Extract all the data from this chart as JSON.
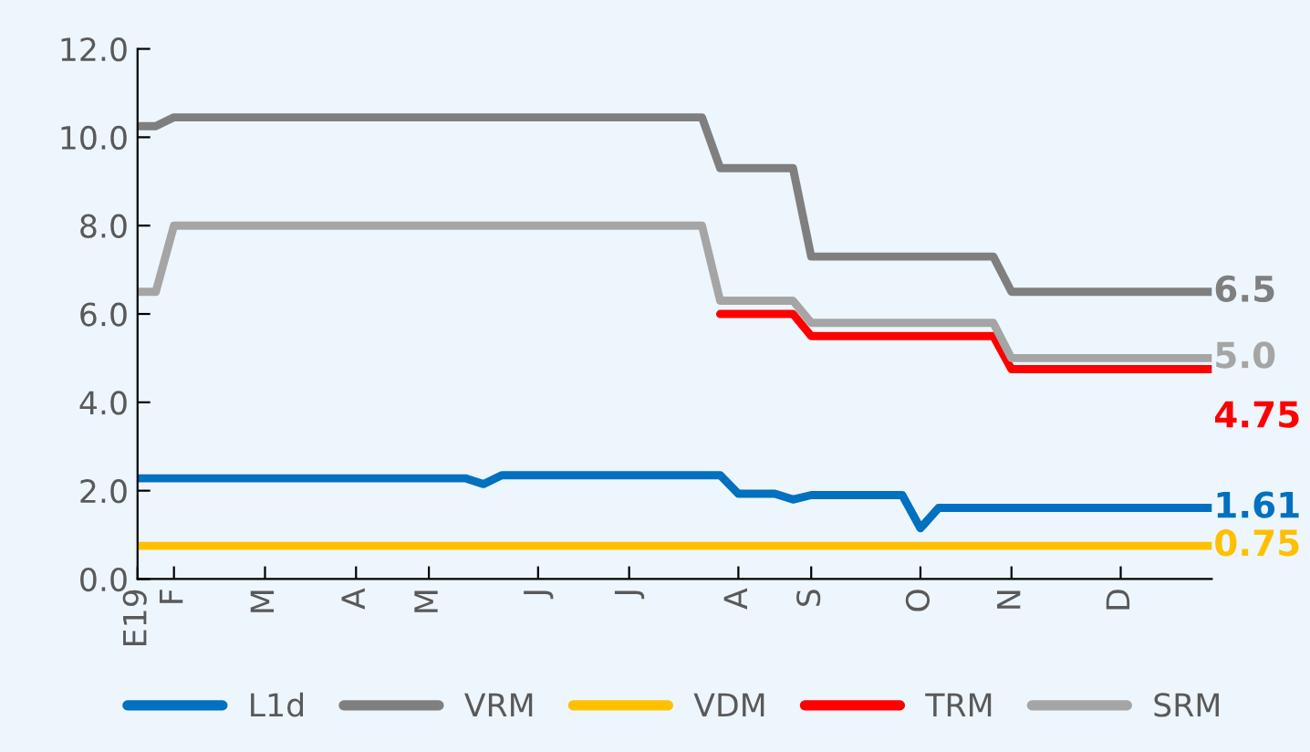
{
  "chart_data": {
    "type": "line",
    "ylim": [
      0,
      12
    ],
    "yticks": [
      {
        "value": 0,
        "label": "0.0"
      },
      {
        "value": 2,
        "label": "2.0"
      },
      {
        "value": 4,
        "label": "4.0"
      },
      {
        "value": 6,
        "label": "6.0"
      },
      {
        "value": 8,
        "label": "8.0"
      },
      {
        "value": 10,
        "label": "10.0"
      },
      {
        "value": 12,
        "label": "12.0"
      }
    ],
    "categories": [
      "E19",
      null,
      "F",
      null,
      null,
      null,
      null,
      "M",
      null,
      null,
      null,
      null,
      "A",
      null,
      null,
      null,
      "M",
      null,
      null,
      null,
      null,
      null,
      "J",
      null,
      null,
      null,
      null,
      "J",
      null,
      null,
      null,
      null,
      null,
      "A",
      null,
      null,
      null,
      "S",
      null,
      null,
      null,
      null,
      null,
      "O",
      null,
      null,
      null,
      null,
      "N",
      null,
      null,
      null,
      null,
      null,
      "D",
      null,
      null,
      null,
      null,
      null
    ],
    "grid": false,
    "legend": "bottom",
    "marker": "none",
    "line_style": "solid",
    "series": [
      {
        "name": "L1d",
        "color": "#0070c0",
        "values": [
          2.28,
          2.28,
          2.28,
          2.28,
          2.28,
          2.28,
          2.28,
          2.28,
          2.28,
          2.28,
          2.28,
          2.28,
          2.28,
          2.28,
          2.28,
          2.28,
          2.28,
          2.28,
          2.28,
          2.15,
          2.35,
          2.35,
          2.35,
          2.35,
          2.35,
          2.35,
          2.35,
          2.35,
          2.35,
          2.35,
          2.35,
          2.35,
          2.35,
          1.93,
          1.93,
          1.93,
          1.8,
          1.9,
          1.9,
          1.9,
          1.9,
          1.9,
          1.9,
          1.15,
          1.61,
          1.61,
          1.61,
          1.61,
          1.61,
          1.61,
          1.61,
          1.61,
          1.61,
          1.61,
          1.61,
          1.61,
          1.61,
          1.61,
          1.61,
          1.61
        ],
        "value_labels": [
          null,
          null,
          null,
          null,
          null,
          null,
          null,
          null,
          null,
          null,
          null,
          null,
          null,
          null,
          null,
          null,
          null,
          null,
          null,
          null,
          null,
          null,
          null,
          null,
          null,
          null,
          null,
          null,
          null,
          null,
          null,
          null,
          null,
          null,
          null,
          null,
          null,
          null,
          null,
          null,
          null,
          null,
          null,
          null,
          null,
          null,
          null,
          null,
          null,
          null,
          null,
          null,
          null,
          null,
          null,
          null,
          null,
          null,
          null,
          "1.61"
        ]
      },
      {
        "name": "VRM",
        "color": "#7f7f7f",
        "values": [
          10.25,
          10.25,
          10.45,
          10.45,
          10.45,
          10.45,
          10.45,
          10.45,
          10.45,
          10.45,
          10.45,
          10.45,
          10.45,
          10.45,
          10.45,
          10.45,
          10.45,
          10.45,
          10.45,
          10.45,
          10.45,
          10.45,
          10.45,
          10.45,
          10.45,
          10.45,
          10.45,
          10.45,
          10.45,
          10.45,
          10.45,
          10.45,
          9.3,
          9.3,
          9.3,
          9.3,
          9.3,
          7.3,
          7.3,
          7.3,
          7.3,
          7.3,
          7.3,
          7.3,
          7.3,
          7.3,
          7.3,
          7.3,
          6.5,
          6.5,
          6.5,
          6.5,
          6.5,
          6.5,
          6.5,
          6.5,
          6.5,
          6.5,
          6.5,
          6.5
        ],
        "value_labels": [
          null,
          null,
          null,
          null,
          null,
          null,
          null,
          null,
          null,
          null,
          null,
          null,
          null,
          null,
          null,
          null,
          null,
          null,
          null,
          null,
          null,
          null,
          null,
          null,
          null,
          null,
          null,
          null,
          null,
          null,
          null,
          null,
          null,
          null,
          null,
          null,
          null,
          null,
          null,
          null,
          null,
          null,
          null,
          null,
          null,
          null,
          null,
          null,
          null,
          null,
          null,
          null,
          null,
          null,
          null,
          null,
          null,
          null,
          null,
          "6.5"
        ]
      },
      {
        "name": "VDM",
        "color": "#ffc000",
        "values": [
          0.75,
          0.75,
          0.75,
          0.75,
          0.75,
          0.75,
          0.75,
          0.75,
          0.75,
          0.75,
          0.75,
          0.75,
          0.75,
          0.75,
          0.75,
          0.75,
          0.75,
          0.75,
          0.75,
          0.75,
          0.75,
          0.75,
          0.75,
          0.75,
          0.75,
          0.75,
          0.75,
          0.75,
          0.75,
          0.75,
          0.75,
          0.75,
          0.75,
          0.75,
          0.75,
          0.75,
          0.75,
          0.75,
          0.75,
          0.75,
          0.75,
          0.75,
          0.75,
          0.75,
          0.75,
          0.75,
          0.75,
          0.75,
          0.75,
          0.75,
          0.75,
          0.75,
          0.75,
          0.75,
          0.75,
          0.75,
          0.75,
          0.75,
          0.75,
          0.75
        ],
        "value_labels": [
          null,
          null,
          null,
          null,
          null,
          null,
          null,
          null,
          null,
          null,
          null,
          null,
          null,
          null,
          null,
          null,
          null,
          null,
          null,
          null,
          null,
          null,
          null,
          null,
          null,
          null,
          null,
          null,
          null,
          null,
          null,
          null,
          null,
          null,
          null,
          null,
          null,
          null,
          null,
          null,
          null,
          null,
          null,
          null,
          null,
          null,
          null,
          null,
          null,
          null,
          null,
          null,
          null,
          null,
          null,
          null,
          null,
          null,
          null,
          "0.75"
        ]
      },
      {
        "name": "TRM",
        "color": "#ff0000",
        "values": [
          null,
          null,
          null,
          null,
          null,
          null,
          null,
          null,
          null,
          null,
          null,
          null,
          null,
          null,
          null,
          null,
          null,
          null,
          null,
          null,
          null,
          null,
          null,
          null,
          null,
          null,
          null,
          null,
          null,
          null,
          null,
          null,
          6.0,
          6.0,
          6.0,
          6.0,
          6.0,
          5.5,
          5.5,
          5.5,
          5.5,
          5.5,
          5.5,
          5.5,
          5.5,
          5.5,
          5.5,
          5.5,
          4.75,
          4.75,
          4.75,
          4.75,
          4.75,
          4.75,
          4.75,
          4.75,
          4.75,
          4.75,
          4.75,
          4.75
        ],
        "value_labels": [
          null,
          null,
          null,
          null,
          null,
          null,
          null,
          null,
          null,
          null,
          null,
          null,
          null,
          null,
          null,
          null,
          null,
          null,
          null,
          null,
          null,
          null,
          null,
          null,
          null,
          null,
          null,
          null,
          null,
          null,
          null,
          null,
          null,
          null,
          null,
          null,
          null,
          null,
          null,
          null,
          null,
          null,
          null,
          null,
          null,
          null,
          null,
          null,
          null,
          null,
          null,
          null,
          null,
          null,
          null,
          null,
          null,
          null,
          null,
          "4.75"
        ]
      },
      {
        "name": "SRM",
        "color": "#a5a5a5",
        "values": [
          6.5,
          6.5,
          8.0,
          8.0,
          8.0,
          8.0,
          8.0,
          8.0,
          8.0,
          8.0,
          8.0,
          8.0,
          8.0,
          8.0,
          8.0,
          8.0,
          8.0,
          8.0,
          8.0,
          8.0,
          8.0,
          8.0,
          8.0,
          8.0,
          8.0,
          8.0,
          8.0,
          8.0,
          8.0,
          8.0,
          8.0,
          8.0,
          6.3,
          6.3,
          6.3,
          6.3,
          6.3,
          5.8,
          5.8,
          5.8,
          5.8,
          5.8,
          5.8,
          5.8,
          5.8,
          5.8,
          5.8,
          5.8,
          5.0,
          5.0,
          5.0,
          5.0,
          5.0,
          5.0,
          5.0,
          5.0,
          5.0,
          5.0,
          5.0,
          5.0
        ],
        "value_labels": [
          null,
          null,
          null,
          null,
          null,
          null,
          null,
          null,
          null,
          null,
          null,
          null,
          null,
          null,
          null,
          null,
          null,
          null,
          null,
          null,
          null,
          null,
          null,
          null,
          null,
          null,
          null,
          null,
          null,
          null,
          null,
          null,
          null,
          null,
          null,
          null,
          null,
          null,
          null,
          null,
          null,
          null,
          null,
          null,
          null,
          null,
          null,
          null,
          null,
          null,
          null,
          null,
          null,
          null,
          null,
          null,
          null,
          null,
          null,
          "5.0"
        ]
      }
    ]
  }
}
